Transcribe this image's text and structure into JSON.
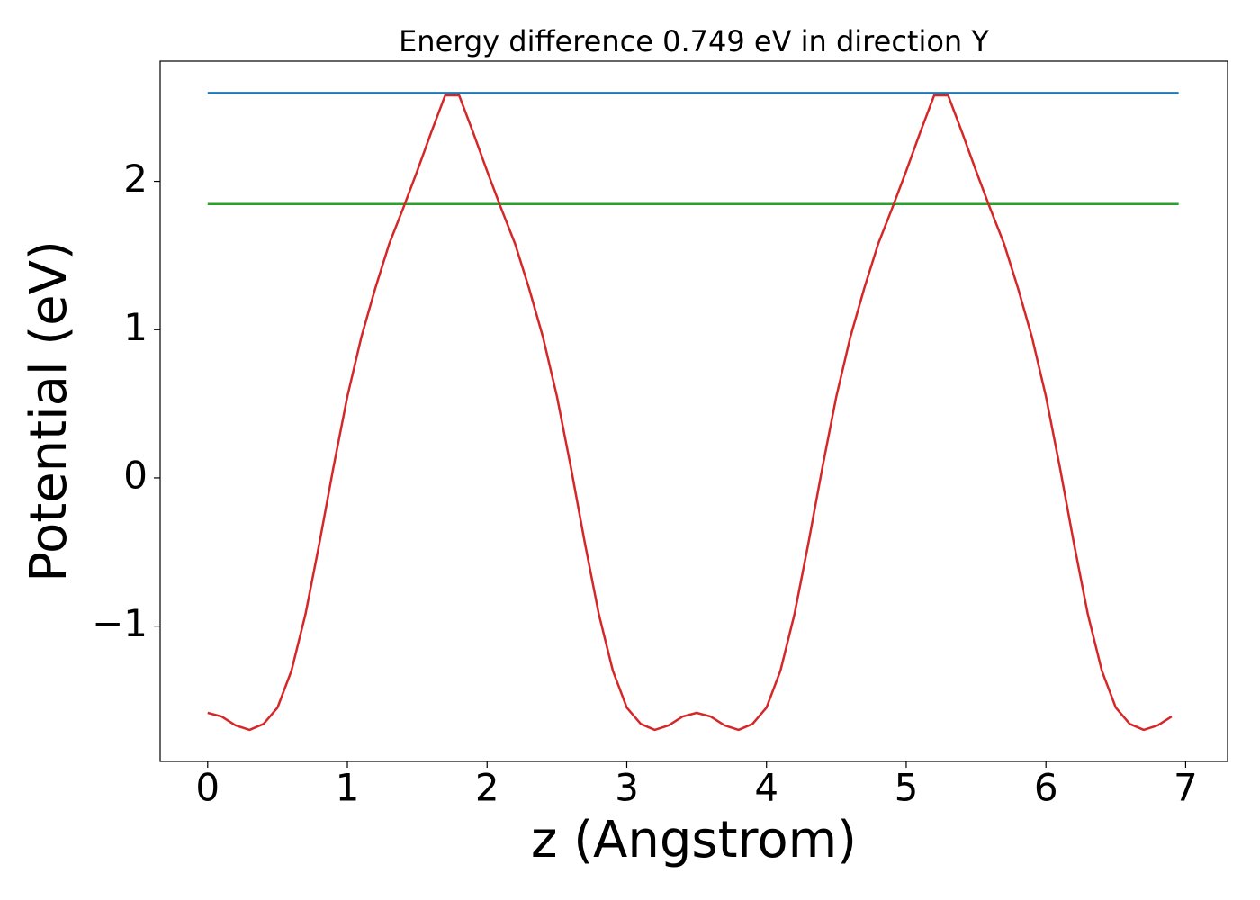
{
  "chart_data": {
    "type": "line",
    "title": "Energy difference 0.749 eV in direction Y",
    "x_label": "z (Angstrom)",
    "y_label": "Potential (eV)",
    "xlim": [
      -0.34,
      7.3
    ],
    "ylim": [
      -1.913,
      2.811
    ],
    "xticks": [
      0,
      1,
      2,
      3,
      4,
      5,
      6,
      7
    ],
    "yticks": [
      {
        "value": -1,
        "label": "−1"
      },
      0,
      1,
      2
    ],
    "series": [
      {
        "color": "#1f77b4",
        "x": [
          0,
          6.95
        ],
        "values": [
          2.596,
          2.596
        ]
      },
      {
        "color": "#2ca02c",
        "x": [
          0,
          6.95
        ],
        "values": [
          1.847,
          1.847
        ]
      },
      {
        "color": "#d62728",
        "x": [
          0,
          0.1,
          0.2,
          0.3,
          0.4,
          0.5,
          0.6,
          0.7,
          0.8,
          0.9,
          1.0,
          1.1,
          1.2,
          1.3,
          1.4,
          1.5,
          1.6,
          1.7,
          1.8,
          1.9,
          2.0,
          2.1,
          2.2,
          2.3,
          2.4,
          2.5,
          2.6,
          2.7,
          2.8,
          2.9,
          3.0,
          3.1,
          3.2,
          3.3,
          3.4,
          3.5,
          3.6,
          3.7,
          3.8,
          3.9,
          4.0,
          4.1,
          4.2,
          4.3,
          4.4,
          4.5,
          4.6,
          4.7,
          4.8,
          4.9,
          5.0,
          5.1,
          5.2,
          5.3,
          5.4,
          5.5,
          5.6,
          5.7,
          5.8,
          5.9,
          6.0,
          6.1,
          6.2,
          6.3,
          6.4,
          6.5,
          6.6,
          6.7,
          6.8,
          6.9
        ],
        "values": [
          -1.585,
          -1.61,
          -1.67,
          -1.7,
          -1.66,
          -1.55,
          -1.3,
          -0.92,
          -0.44,
          0.07,
          0.55,
          0.95,
          1.28,
          1.58,
          1.82,
          2.07,
          2.33,
          2.58,
          2.58,
          2.33,
          2.07,
          1.82,
          1.58,
          1.28,
          0.95,
          0.55,
          0.07,
          -0.44,
          -0.92,
          -1.3,
          -1.55,
          -1.66,
          -1.7,
          -1.67,
          -1.61,
          -1.585,
          -1.61,
          -1.67,
          -1.7,
          -1.66,
          -1.55,
          -1.3,
          -0.92,
          -0.44,
          0.07,
          0.55,
          0.95,
          1.28,
          1.58,
          1.82,
          2.07,
          2.33,
          2.58,
          2.58,
          2.33,
          2.07,
          1.82,
          1.58,
          1.28,
          0.95,
          0.55,
          0.07,
          -0.44,
          -0.92,
          -1.3,
          -1.55,
          -1.66,
          -1.7,
          -1.67,
          -1.61
        ]
      }
    ]
  }
}
